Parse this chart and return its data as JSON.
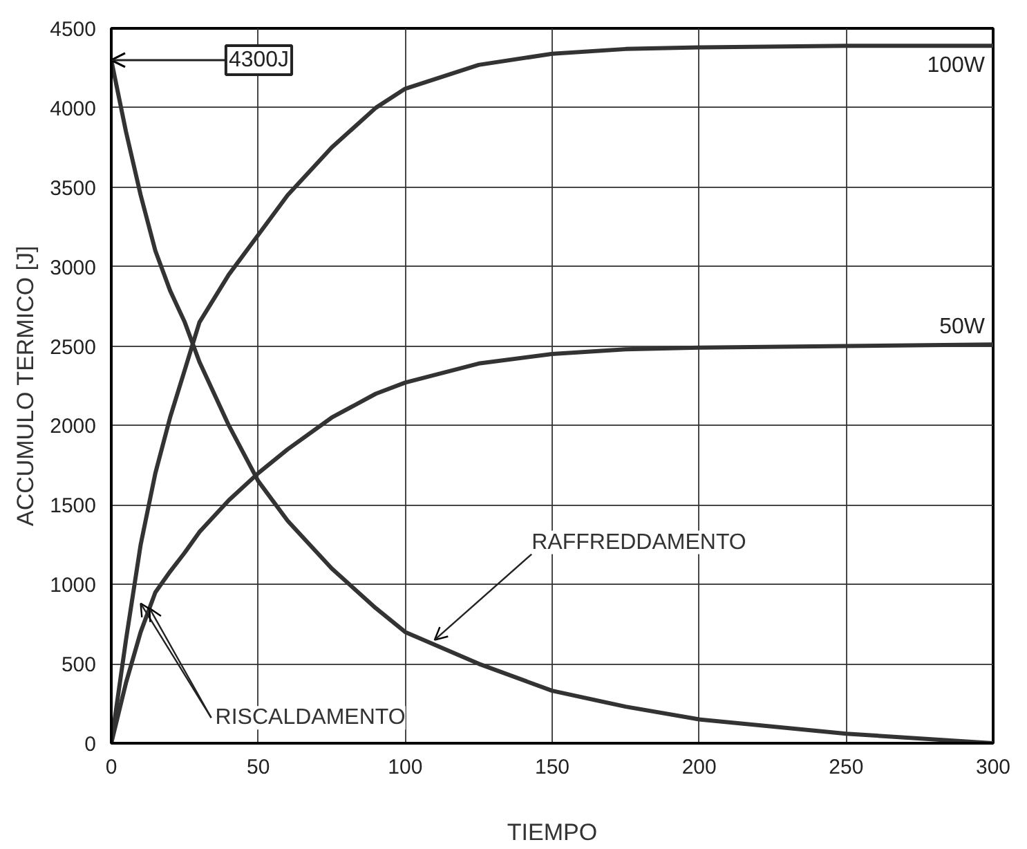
{
  "chart_data": {
    "type": "line",
    "xlabel": "TIEMPO",
    "ylabel": "ACCUMULO TERMICO [J]",
    "x": [
      0,
      5,
      10,
      15,
      20,
      25,
      30,
      40,
      50,
      60,
      75,
      90,
      100,
      125,
      150,
      175,
      200,
      250,
      300
    ],
    "series": [
      {
        "name": "100W",
        "color": "#333333",
        "values": [
          0,
          650,
          1250,
          1700,
          2050,
          2350,
          2650,
          2950,
          3200,
          3450,
          3750,
          4000,
          4120,
          4270,
          4340,
          4370,
          4380,
          4390,
          4390
        ]
      },
      {
        "name": "50W",
        "color": "#333333",
        "values": [
          0,
          380,
          700,
          950,
          1080,
          1200,
          1330,
          1530,
          1700,
          1850,
          2050,
          2200,
          2270,
          2390,
          2450,
          2480,
          2490,
          2500,
          2510
        ]
      },
      {
        "color": "#333333",
        "values": [
          4300,
          3850,
          3450,
          3100,
          2850,
          2650,
          2400,
          2000,
          1650,
          1400,
          1100,
          850,
          700,
          500,
          330,
          230,
          150,
          60,
          0
        ]
      }
    ],
    "xlim": [
      0,
      300
    ],
    "ylim": [
      0,
      4500
    ],
    "xticks": [
      0,
      50,
      100,
      150,
      200,
      250,
      300
    ],
    "yticks": [
      0,
      500,
      1000,
      1500,
      2000,
      2500,
      3000,
      3500,
      4000,
      4500
    ],
    "grid": true,
    "line_style": "solid",
    "marker": "none",
    "annotations": [
      {
        "text": "4300J",
        "x": 0,
        "y": 4300
      },
      {
        "text": "RAFFREDDAMENTO",
        "x": 110,
        "y": 650
      },
      {
        "text": "RISCALDAMENTO",
        "x": 10,
        "y": 880
      }
    ]
  }
}
